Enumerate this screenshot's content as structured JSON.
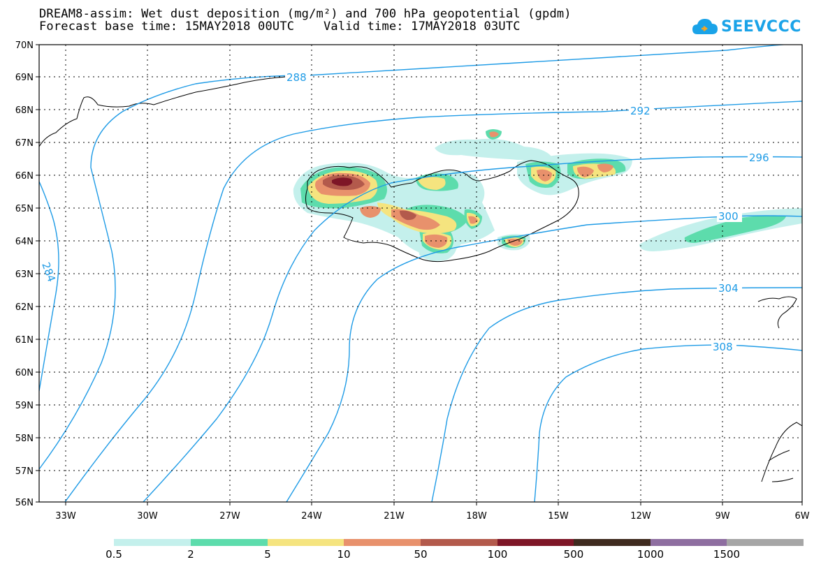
{
  "header": {
    "title_line1": "DREAM8-assim: Wet dust deposition (mg/m²) and 700 hPa geopotential (gpdm)",
    "title_line2": "Forecast base time: 15MAY2018 00UTC    Valid time: 17MAY2018 03UTC",
    "logo_text": "SEEVCCC",
    "logo_icon": "cloud-icon",
    "logo_color": "#1aa3e8"
  },
  "map": {
    "lat_labels": [
      "70N",
      "69N",
      "68N",
      "67N",
      "66N",
      "65N",
      "64N",
      "63N",
      "62N",
      "61N",
      "60N",
      "59N",
      "58N",
      "57N",
      "56N"
    ],
    "lon_labels": [
      "33W",
      "30W",
      "27W",
      "24W",
      "21W",
      "18W",
      "15W",
      "12W",
      "9W",
      "6W"
    ],
    "lat_range": [
      56,
      70
    ],
    "lon_range": [
      -34.2,
      -6
    ],
    "grid": "dotted",
    "contour_color": "#1e9be6",
    "contour_labels": [
      "288",
      "292",
      "296",
      "300",
      "304",
      "308",
      "284"
    ]
  },
  "legend": {
    "labels": [
      "0.5",
      "2",
      "5",
      "10",
      "50",
      "100",
      "500",
      "1000",
      "1500"
    ],
    "colors": [
      "#c4f0ec",
      "#5ddcac",
      "#f5e47f",
      "#e8916c",
      "#b35a4c",
      "#7e1627",
      "#3f2b1f",
      "#8e6ea0",
      "#a6a6a6"
    ]
  }
}
